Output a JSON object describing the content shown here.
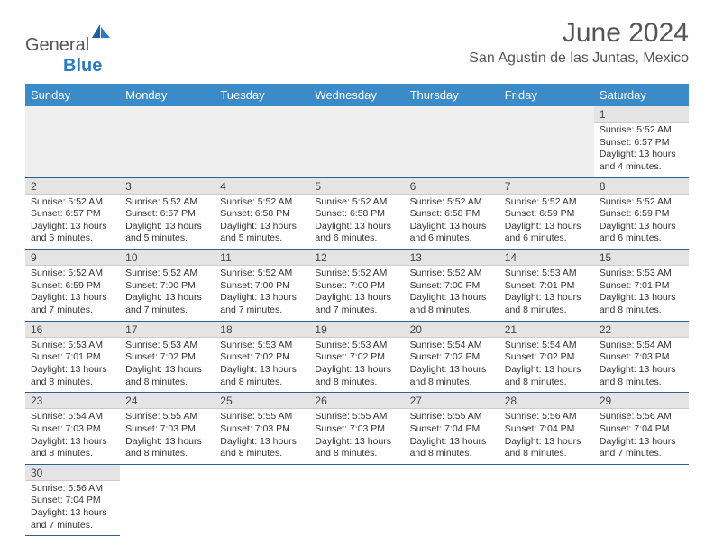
{
  "logo": {
    "text1": "General",
    "text2": "Blue"
  },
  "title": "June 2024",
  "location": "San Agustin de las Juntas, Mexico",
  "headerColor": "#3b8bc8",
  "borderColor": "#2b5f95",
  "dayHeaders": [
    "Sunday",
    "Monday",
    "Tuesday",
    "Wednesday",
    "Thursday",
    "Friday",
    "Saturday"
  ],
  "days": {
    "1": {
      "sr": "5:52 AM",
      "ss": "6:57 PM",
      "dl": "13 hours and 4 minutes."
    },
    "2": {
      "sr": "5:52 AM",
      "ss": "6:57 PM",
      "dl": "13 hours and 5 minutes."
    },
    "3": {
      "sr": "5:52 AM",
      "ss": "6:57 PM",
      "dl": "13 hours and 5 minutes."
    },
    "4": {
      "sr": "5:52 AM",
      "ss": "6:58 PM",
      "dl": "13 hours and 5 minutes."
    },
    "5": {
      "sr": "5:52 AM",
      "ss": "6:58 PM",
      "dl": "13 hours and 6 minutes."
    },
    "6": {
      "sr": "5:52 AM",
      "ss": "6:58 PM",
      "dl": "13 hours and 6 minutes."
    },
    "7": {
      "sr": "5:52 AM",
      "ss": "6:59 PM",
      "dl": "13 hours and 6 minutes."
    },
    "8": {
      "sr": "5:52 AM",
      "ss": "6:59 PM",
      "dl": "13 hours and 6 minutes."
    },
    "9": {
      "sr": "5:52 AM",
      "ss": "6:59 PM",
      "dl": "13 hours and 7 minutes."
    },
    "10": {
      "sr": "5:52 AM",
      "ss": "7:00 PM",
      "dl": "13 hours and 7 minutes."
    },
    "11": {
      "sr": "5:52 AM",
      "ss": "7:00 PM",
      "dl": "13 hours and 7 minutes."
    },
    "12": {
      "sr": "5:52 AM",
      "ss": "7:00 PM",
      "dl": "13 hours and 7 minutes."
    },
    "13": {
      "sr": "5:52 AM",
      "ss": "7:00 PM",
      "dl": "13 hours and 8 minutes."
    },
    "14": {
      "sr": "5:53 AM",
      "ss": "7:01 PM",
      "dl": "13 hours and 8 minutes."
    },
    "15": {
      "sr": "5:53 AM",
      "ss": "7:01 PM",
      "dl": "13 hours and 8 minutes."
    },
    "16": {
      "sr": "5:53 AM",
      "ss": "7:01 PM",
      "dl": "13 hours and 8 minutes."
    },
    "17": {
      "sr": "5:53 AM",
      "ss": "7:02 PM",
      "dl": "13 hours and 8 minutes."
    },
    "18": {
      "sr": "5:53 AM",
      "ss": "7:02 PM",
      "dl": "13 hours and 8 minutes."
    },
    "19": {
      "sr": "5:53 AM",
      "ss": "7:02 PM",
      "dl": "13 hours and 8 minutes."
    },
    "20": {
      "sr": "5:54 AM",
      "ss": "7:02 PM",
      "dl": "13 hours and 8 minutes."
    },
    "21": {
      "sr": "5:54 AM",
      "ss": "7:02 PM",
      "dl": "13 hours and 8 minutes."
    },
    "22": {
      "sr": "5:54 AM",
      "ss": "7:03 PM",
      "dl": "13 hours and 8 minutes."
    },
    "23": {
      "sr": "5:54 AM",
      "ss": "7:03 PM",
      "dl": "13 hours and 8 minutes."
    },
    "24": {
      "sr": "5:55 AM",
      "ss": "7:03 PM",
      "dl": "13 hours and 8 minutes."
    },
    "25": {
      "sr": "5:55 AM",
      "ss": "7:03 PM",
      "dl": "13 hours and 8 minutes."
    },
    "26": {
      "sr": "5:55 AM",
      "ss": "7:03 PM",
      "dl": "13 hours and 8 minutes."
    },
    "27": {
      "sr": "5:55 AM",
      "ss": "7:04 PM",
      "dl": "13 hours and 8 minutes."
    },
    "28": {
      "sr": "5:56 AM",
      "ss": "7:04 PM",
      "dl": "13 hours and 8 minutes."
    },
    "29": {
      "sr": "5:56 AM",
      "ss": "7:04 PM",
      "dl": "13 hours and 7 minutes."
    },
    "30": {
      "sr": "5:56 AM",
      "ss": "7:04 PM",
      "dl": "13 hours and 7 minutes."
    }
  },
  "labels": {
    "sunrise": "Sunrise: ",
    "sunset": "Sunset: ",
    "daylight": "Daylight: "
  }
}
